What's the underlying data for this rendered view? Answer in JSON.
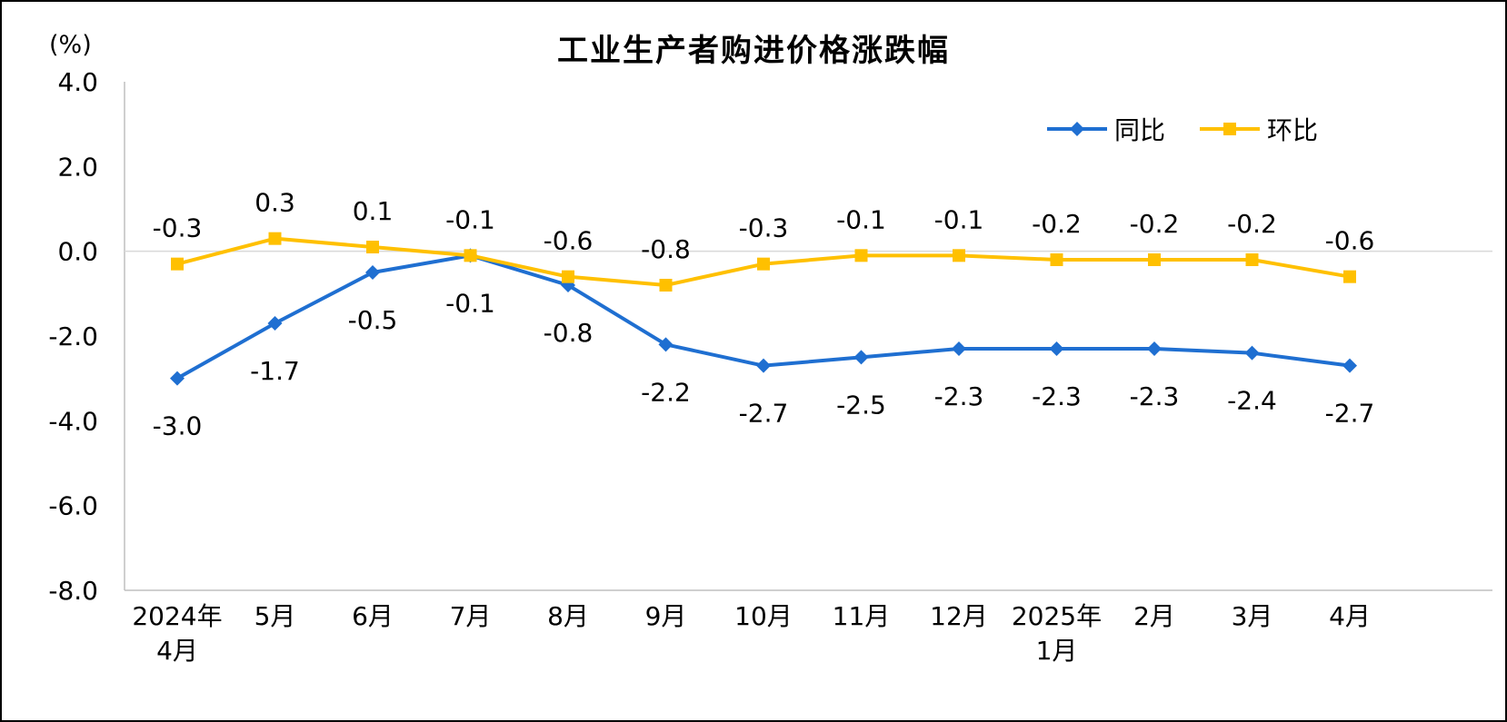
{
  "chart_data": {
    "type": "line",
    "title": "工业生产者购进价格涨跌幅",
    "ylabel": "(%)",
    "xlabel": "",
    "ylim": [
      -8.0,
      4.0
    ],
    "ytick_step": 2.0,
    "grid": "zero-line-only",
    "legend_position": "top-right",
    "axis_color": "#bfbfbf",
    "zero_line_color": "#d9d9d9",
    "label_color": "#000000",
    "yticks": [
      {
        "v": 4.0,
        "label": "4.0"
      },
      {
        "v": 2.0,
        "label": "2.0"
      },
      {
        "v": 0.0,
        "label": "0.0"
      },
      {
        "v": -2.0,
        "label": "-2.0"
      },
      {
        "v": -4.0,
        "label": "-4.0"
      },
      {
        "v": -6.0,
        "label": "-6.0"
      },
      {
        "v": -8.0,
        "label": "-8.0"
      }
    ],
    "categories": [
      [
        "2024年",
        "4月"
      ],
      [
        "5月"
      ],
      [
        "6月"
      ],
      [
        "7月"
      ],
      [
        "8月"
      ],
      [
        "9月"
      ],
      [
        "10月"
      ],
      [
        "11月"
      ],
      [
        "12月"
      ],
      [
        "2025年",
        "1月"
      ],
      [
        "2月"
      ],
      [
        "3月"
      ],
      [
        "4月"
      ]
    ],
    "series": [
      {
        "name": "同比",
        "color": "#1f6fd1",
        "marker": "diamond",
        "label_position": "below",
        "values": [
          -3.0,
          -1.7,
          -0.5,
          -0.1,
          -0.8,
          -2.2,
          -2.7,
          -2.5,
          -2.3,
          -2.3,
          -2.3,
          -2.4,
          -2.7
        ],
        "labels": [
          "-3.0",
          "-1.7",
          "-0.5",
          "-0.1",
          "-0.8",
          "-2.2",
          "-2.7",
          "-2.5",
          "-2.3",
          "-2.3",
          "-2.3",
          "-2.4",
          "-2.7"
        ]
      },
      {
        "name": "环比",
        "color": "#ffc000",
        "marker": "square",
        "label_position": "above",
        "values": [
          -0.3,
          0.3,
          0.1,
          -0.1,
          -0.6,
          -0.8,
          -0.3,
          -0.1,
          -0.1,
          -0.2,
          -0.2,
          -0.2,
          -0.6
        ],
        "labels": [
          "-0.3",
          "0.3",
          "0.1",
          "-0.1",
          "-0.6",
          "-0.8",
          "-0.3",
          "-0.1",
          "-0.1",
          "-0.2",
          "-0.2",
          "-0.2",
          "-0.6"
        ]
      }
    ]
  }
}
